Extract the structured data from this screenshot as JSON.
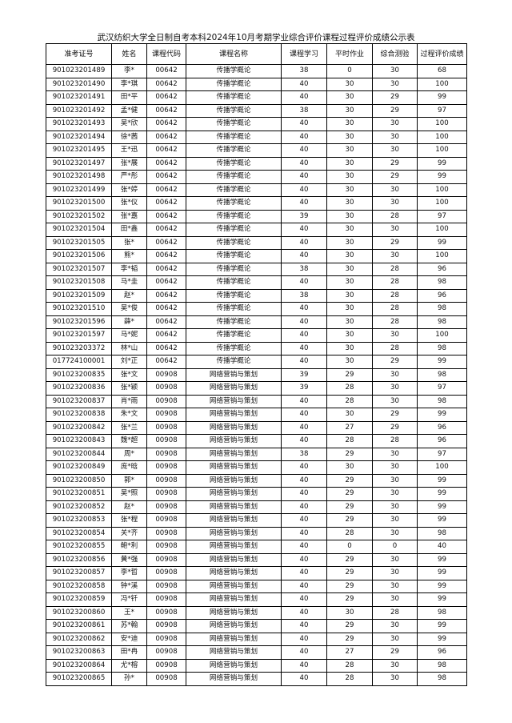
{
  "title": "武汉纺织大学全日制自考本科2024年10月考期学业综合评价课程过程评价成绩公示表",
  "table": {
    "headers": [
      "准考证号",
      "姓名",
      "课程代码",
      "课程名称",
      "课程学习",
      "平时作业",
      "综合测验",
      "过程评价成绩"
    ],
    "rows": [
      [
        "901023201489",
        "李*",
        "00642",
        "传播学概论",
        "38",
        "0",
        "30",
        "68"
      ],
      [
        "901023201490",
        "李*琪",
        "00642",
        "传播学概论",
        "40",
        "30",
        "30",
        "100"
      ],
      [
        "901023201491",
        "田*平",
        "00642",
        "传播学概论",
        "40",
        "30",
        "29",
        "99"
      ],
      [
        "901023201492",
        "孟*健",
        "00642",
        "传播学概论",
        "38",
        "30",
        "29",
        "97"
      ],
      [
        "901023201493",
        "吴*欣",
        "00642",
        "传播学概论",
        "40",
        "30",
        "30",
        "100"
      ],
      [
        "901023201494",
        "徐*茜",
        "00642",
        "传播学概论",
        "40",
        "30",
        "30",
        "100"
      ],
      [
        "901023201495",
        "王*迅",
        "00642",
        "传播学概论",
        "40",
        "30",
        "30",
        "100"
      ],
      [
        "901023201497",
        "张*展",
        "00642",
        "传播学概论",
        "40",
        "30",
        "29",
        "99"
      ],
      [
        "901023201498",
        "严*彤",
        "00642",
        "传播学概论",
        "40",
        "30",
        "29",
        "99"
      ],
      [
        "901023201499",
        "张*婷",
        "00642",
        "传播学概论",
        "40",
        "30",
        "30",
        "100"
      ],
      [
        "901023201500",
        "张*仪",
        "00642",
        "传播学概论",
        "40",
        "30",
        "30",
        "100"
      ],
      [
        "901023201502",
        "张*嘉",
        "00642",
        "传播学概论",
        "39",
        "30",
        "28",
        "97"
      ],
      [
        "901023201504",
        "田*鑫",
        "00642",
        "传播学概论",
        "40",
        "30",
        "30",
        "100"
      ],
      [
        "901023201505",
        "张*",
        "00642",
        "传播学概论",
        "40",
        "30",
        "29",
        "99"
      ],
      [
        "901023201506",
        "熊*",
        "00642",
        "传播学概论",
        "40",
        "30",
        "30",
        "100"
      ],
      [
        "901023201507",
        "李*韬",
        "00642",
        "传播学概论",
        "38",
        "30",
        "28",
        "96"
      ],
      [
        "901023201508",
        "马*圭",
        "00642",
        "传播学概论",
        "40",
        "30",
        "28",
        "98"
      ],
      [
        "901023201509",
        "赵*",
        "00642",
        "传播学概论",
        "38",
        "30",
        "28",
        "96"
      ],
      [
        "901023201510",
        "吴*俊",
        "00642",
        "传播学概论",
        "40",
        "30",
        "28",
        "98"
      ],
      [
        "901023201596",
        "薛*",
        "00642",
        "传播学概论",
        "40",
        "30",
        "28",
        "98"
      ],
      [
        "901023201597",
        "马*妮",
        "00642",
        "传播学概论",
        "40",
        "30",
        "30",
        "100"
      ],
      [
        "901023203372",
        "林*山",
        "00642",
        "传播学概论",
        "40",
        "30",
        "28",
        "98"
      ],
      [
        "017724100001",
        "刘*正",
        "00642",
        "传播学概论",
        "40",
        "30",
        "29",
        "99"
      ],
      [
        "901023200835",
        "张*文",
        "00908",
        "网络营销与策划",
        "39",
        "29",
        "30",
        "98"
      ],
      [
        "901023200836",
        "张*颖",
        "00908",
        "网络营销与策划",
        "39",
        "28",
        "30",
        "97"
      ],
      [
        "901023200837",
        "肖*雨",
        "00908",
        "网络营销与策划",
        "40",
        "28",
        "30",
        "98"
      ],
      [
        "901023200838",
        "朱*文",
        "00908",
        "网络营销与策划",
        "40",
        "30",
        "29",
        "99"
      ],
      [
        "901023200842",
        "张*兰",
        "00908",
        "网络营销与策划",
        "40",
        "27",
        "29",
        "96"
      ],
      [
        "901023200843",
        "魏*超",
        "00908",
        "网络营销与策划",
        "40",
        "28",
        "28",
        "96"
      ],
      [
        "901023200844",
        "周*",
        "00908",
        "网络营销与策划",
        "38",
        "29",
        "30",
        "97"
      ],
      [
        "901023200849",
        "庞*晗",
        "00908",
        "网络营销与策划",
        "40",
        "30",
        "30",
        "100"
      ],
      [
        "901023200850",
        "郭*",
        "00908",
        "网络营销与策划",
        "40",
        "29",
        "30",
        "99"
      ],
      [
        "901023200851",
        "吴*照",
        "00908",
        "网络营销与策划",
        "40",
        "29",
        "30",
        "99"
      ],
      [
        "901023200852",
        "赵*",
        "00908",
        "网络营销与策划",
        "40",
        "29",
        "30",
        "99"
      ],
      [
        "901023200853",
        "张*程",
        "00908",
        "网络营销与策划",
        "40",
        "29",
        "30",
        "99"
      ],
      [
        "901023200854",
        "关*齐",
        "00908",
        "网络营销与策划",
        "40",
        "28",
        "30",
        "98"
      ],
      [
        "901023200855",
        "鲍*利",
        "00908",
        "网络营销与策划",
        "40",
        "0",
        "0",
        "40"
      ],
      [
        "901023200856",
        "黄*强",
        "00908",
        "网络营销与策划",
        "40",
        "29",
        "30",
        "99"
      ],
      [
        "901023200857",
        "李*哲",
        "00908",
        "网络营销与策划",
        "40",
        "29",
        "30",
        "99"
      ],
      [
        "901023200858",
        "钟*溪",
        "00908",
        "网络营销与策划",
        "40",
        "29",
        "30",
        "99"
      ],
      [
        "901023200859",
        "冯*钎",
        "00908",
        "网络营销与策划",
        "40",
        "29",
        "30",
        "99"
      ],
      [
        "901023200860",
        "王*",
        "00908",
        "网络营销与策划",
        "40",
        "30",
        "28",
        "98"
      ],
      [
        "901023200861",
        "苏*翰",
        "00908",
        "网络营销与策划",
        "40",
        "29",
        "30",
        "99"
      ],
      [
        "901023200862",
        "安*迪",
        "00908",
        "网络营销与策划",
        "40",
        "29",
        "30",
        "99"
      ],
      [
        "901023200863",
        "田*冉",
        "00908",
        "网络营销与策划",
        "40",
        "27",
        "29",
        "96"
      ],
      [
        "901023200864",
        "尤*榕",
        "00908",
        "网络营销与策划",
        "40",
        "28",
        "30",
        "98"
      ],
      [
        "901023200865",
        "孙*",
        "00908",
        "网络营销与策划",
        "40",
        "28",
        "30",
        "98"
      ]
    ]
  }
}
